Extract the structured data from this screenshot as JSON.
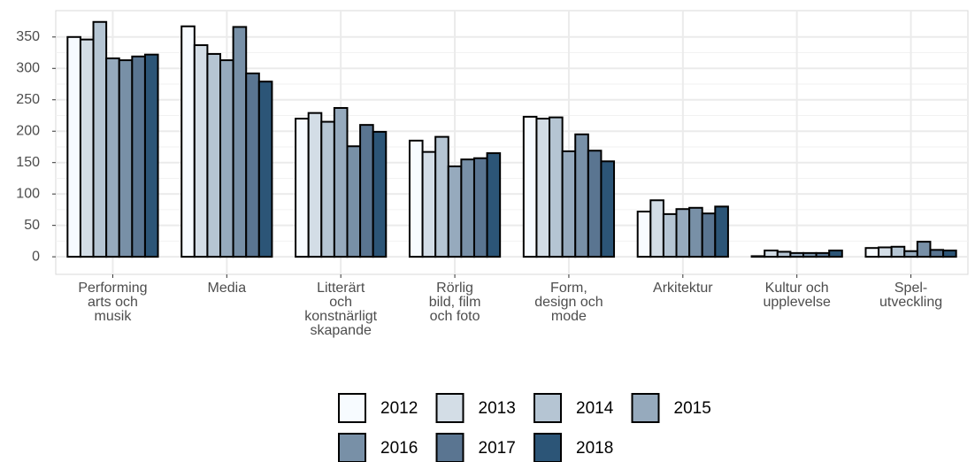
{
  "chart_data": {
    "type": "bar",
    "categories": [
      "Performing\narts och\nmusik",
      "Media",
      "Litterärt\noch\nkonstnärligt\nskapande",
      "Rörlig\nbild, film\noch foto",
      "Form,\ndesign och\nmode",
      "Arkitektur",
      "Kultur och\nupplevelse",
      "Spel-\nutveckling"
    ],
    "series": [
      {
        "name": "2012",
        "color": "#f7fbff",
        "values": [
          350,
          367,
          220,
          185,
          223,
          72,
          1,
          14
        ]
      },
      {
        "name": "2013",
        "color": "#d3dde6",
        "values": [
          346,
          337,
          229,
          167,
          220,
          90,
          10,
          15
        ]
      },
      {
        "name": "2014",
        "color": "#b5c5d3",
        "values": [
          374,
          323,
          215,
          191,
          222,
          68,
          8,
          16
        ]
      },
      {
        "name": "2015",
        "color": "#96aabd",
        "values": [
          316,
          313,
          237,
          144,
          168,
          76,
          6,
          9
        ]
      },
      {
        "name": "2016",
        "color": "#7890a7",
        "values": [
          313,
          366,
          176,
          155,
          195,
          78,
          6,
          24
        ]
      },
      {
        "name": "2017",
        "color": "#5a7591",
        "values": [
          319,
          292,
          210,
          157,
          169,
          69,
          6,
          11
        ]
      },
      {
        "name": "2018",
        "color": "#2c5577",
        "values": [
          322,
          279,
          199,
          165,
          152,
          80,
          10,
          10
        ]
      }
    ],
    "ylim": [
      -28,
      392
    ],
    "yticks": [
      0,
      50,
      100,
      150,
      200,
      250,
      300,
      350
    ],
    "grid": true,
    "legend": "bottom"
  }
}
